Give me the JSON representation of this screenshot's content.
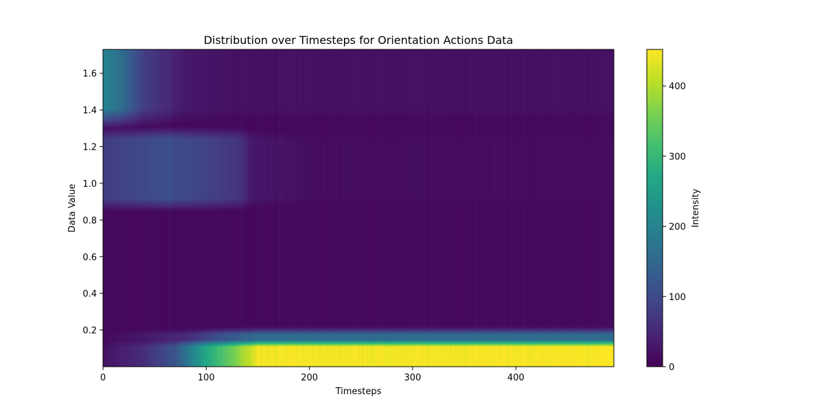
{
  "chart_data": {
    "type": "heatmap",
    "title": "Distribution over Timesteps for Orientation Actions Data",
    "xlabel": "Timesteps",
    "ylabel": "Data Value",
    "xlim": [
      0,
      495
    ],
    "ylim": [
      0,
      1.73
    ],
    "x_ticks": [
      0,
      100,
      200,
      300,
      400
    ],
    "y_ticks": [
      0.2,
      0.4,
      0.6,
      0.8,
      1.0,
      1.2,
      1.4,
      1.6
    ],
    "colormap": "viridis",
    "colorbar": {
      "label": "Intensity",
      "range": [
        0,
        452
      ],
      "ticks": [
        0,
        100,
        200,
        300,
        400
      ]
    },
    "regions": [
      {
        "description_value": "bright band",
        "y_range": [
          0.0,
          0.14
        ],
        "intensity_by_timestep": [
          [
            0,
            20
          ],
          [
            40,
            60
          ],
          [
            70,
            120
          ],
          [
            100,
            270
          ],
          [
            130,
            370
          ],
          [
            150,
            445
          ],
          [
            300,
            445
          ],
          [
            495,
            450
          ]
        ]
      },
      {
        "description_value": "band edge",
        "y_range": [
          0.14,
          0.22
        ],
        "intensity_by_timestep": [
          [
            0,
            15
          ],
          [
            80,
            90
          ],
          [
            120,
            200
          ],
          [
            150,
            260
          ],
          [
            495,
            260
          ]
        ]
      },
      {
        "description_value": "early mid cluster",
        "y_range": [
          0.88,
          1.28
        ],
        "intensity_by_timestep": [
          [
            0,
            80
          ],
          [
            60,
            110
          ],
          [
            130,
            70
          ],
          [
            145,
            30
          ],
          [
            200,
            15
          ]
        ]
      },
      {
        "description_value": "early high cluster",
        "y_range": [
          1.35,
          1.73
        ],
        "intensity_by_timestep": [
          [
            0,
            200
          ],
          [
            15,
            170
          ],
          [
            40,
            80
          ],
          [
            80,
            30
          ],
          [
            130,
            20
          ]
        ]
      },
      {
        "description_value": "background",
        "y_range": [
          0.22,
          1.73
        ],
        "intensity_by_timestep": [
          [
            0,
            10
          ],
          [
            495,
            12
          ]
        ]
      }
    ],
    "colors": {
      "viridis_stops": [
        "#440154",
        "#482475",
        "#414487",
        "#355f8d",
        "#2a788e",
        "#21918c",
        "#22a884",
        "#44bf70",
        "#7ad151",
        "#bddf26",
        "#fde725"
      ]
    }
  }
}
